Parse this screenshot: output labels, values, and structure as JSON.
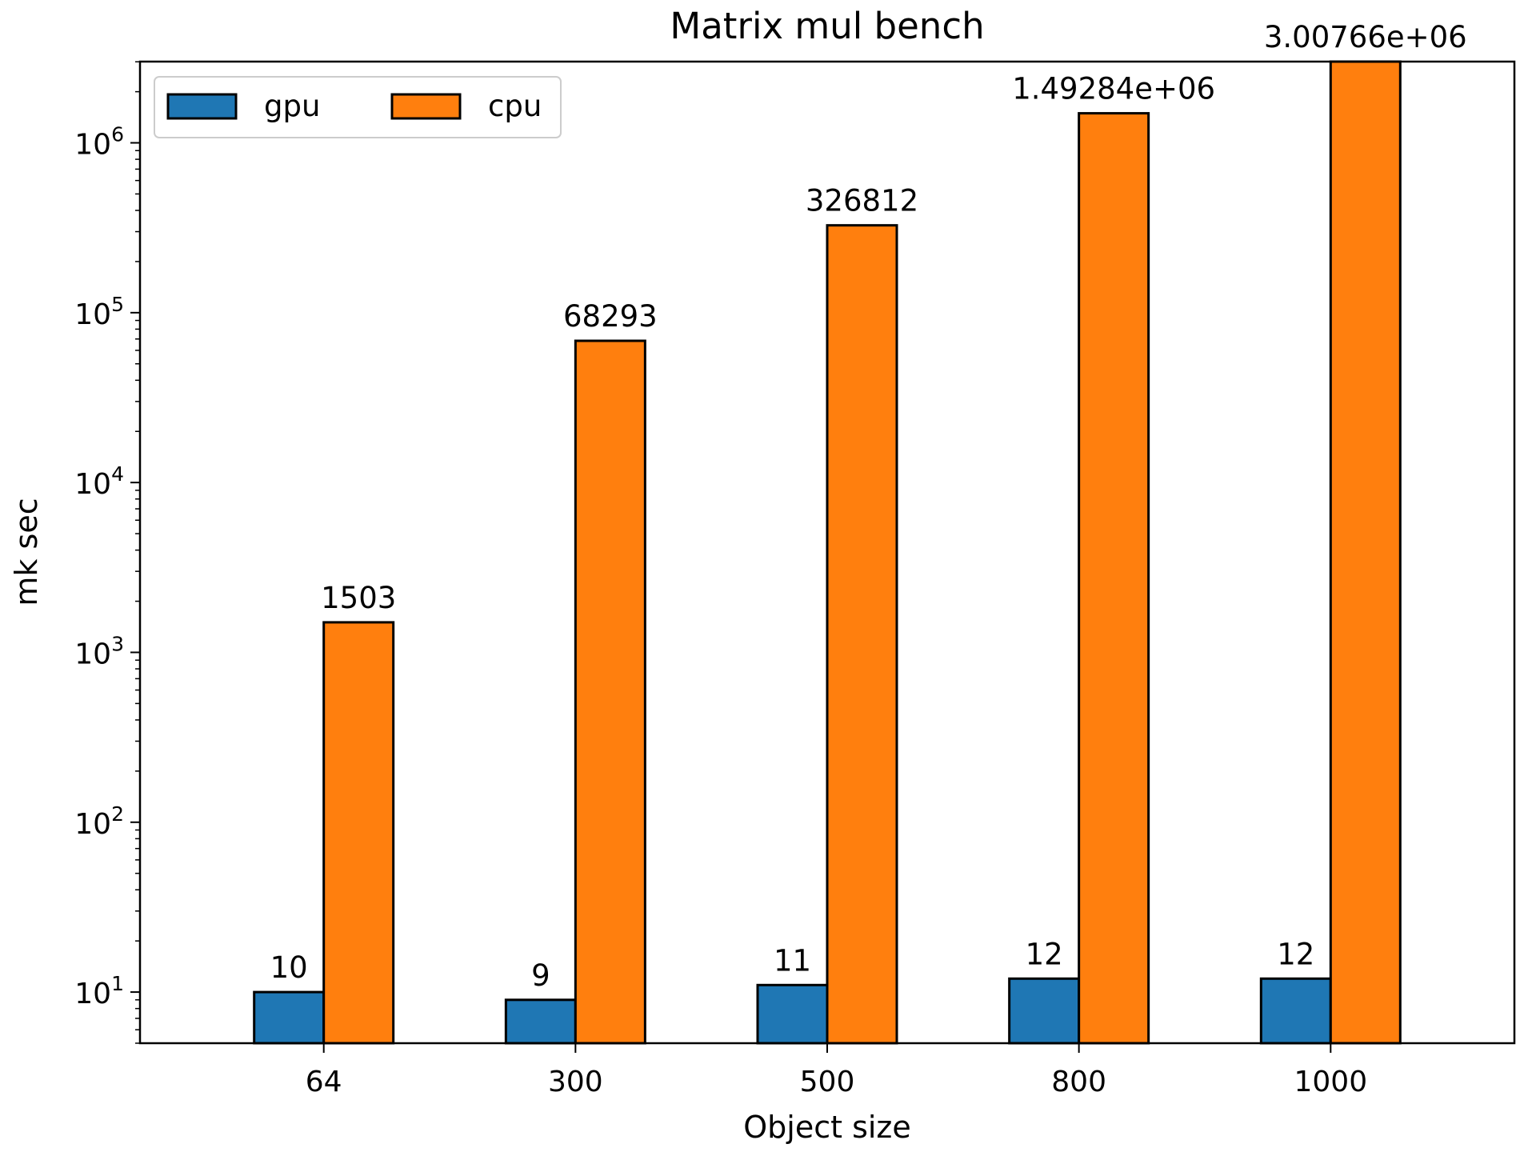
{
  "chart_data": {
    "type": "bar",
    "title": "Matrix mul bench",
    "xlabel": "Object size",
    "ylabel": "mk sec",
    "yscale": "log",
    "ylim": [
      5,
      3007660
    ],
    "categories": [
      "64",
      "300",
      "500",
      "800",
      "1000"
    ],
    "series": [
      {
        "name": "gpu",
        "color": "#1f77b4",
        "values": [
          10,
          9,
          11,
          12,
          12
        ],
        "labels": [
          "10",
          "9",
          "11",
          "12",
          "12"
        ]
      },
      {
        "name": "cpu",
        "color": "#ff7f0e",
        "values": [
          1503,
          68293,
          326812,
          1492840,
          3007660
        ],
        "labels": [
          "1503",
          "68293",
          "326812",
          "1.49284e+06",
          "3.00766e+06"
        ]
      }
    ],
    "y_ticks": [
      {
        "value": 10,
        "label": "10",
        "exp": "1"
      },
      {
        "value": 100,
        "label": "10",
        "exp": "2"
      },
      {
        "value": 1000,
        "label": "10",
        "exp": "3"
      },
      {
        "value": 10000,
        "label": "10",
        "exp": "4"
      },
      {
        "value": 100000,
        "label": "10",
        "exp": "5"
      },
      {
        "value": 1000000,
        "label": "10",
        "exp": "6"
      }
    ],
    "legend": {
      "placement": "top-left",
      "columns": 2
    },
    "grid": false
  }
}
